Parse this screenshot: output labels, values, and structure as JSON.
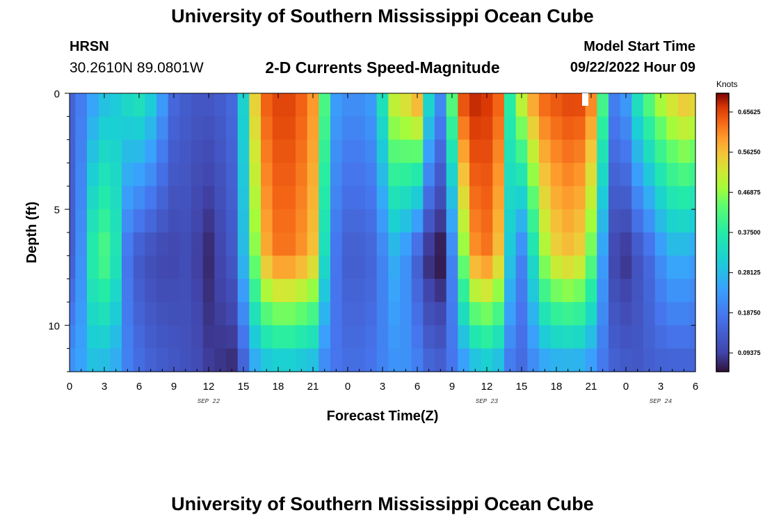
{
  "page": {
    "title": "University of Southern Mississippi Ocean Cube",
    "station": "HRSN",
    "coordinates": "30.2610N  89.0801W",
    "subtitle": "2-D Currents Speed-Magnitude",
    "model_start_label": "Model Start Time",
    "model_start_value": "09/22/2022 Hour 09",
    "repeated_title": "University of Southern Mississippi Ocean Cube"
  },
  "chart_data": {
    "type": "heatmap",
    "xlabel": "Forecast Time(Z)",
    "ylabel": "Depth (ft)",
    "x_tick_labels": [
      "0",
      "3",
      "6",
      "9",
      "12",
      "15",
      "18",
      "21",
      "0",
      "3",
      "6",
      "9",
      "12",
      "15",
      "18",
      "21",
      "0",
      "3",
      "6"
    ],
    "date_labels": [
      {
        "text": "SEP 22",
        "at_hour": 12
      },
      {
        "text": "SEP 23",
        "at_hour": 36
      },
      {
        "text": "SEP 24",
        "at_hour": 51
      }
    ],
    "x_range_hours": [
      0,
      54
    ],
    "y_tick_labels": [
      "0",
      "5",
      "10"
    ],
    "y_range_ft": [
      0,
      12
    ],
    "colorbar": {
      "units": "Knots",
      "range": [
        0.05,
        0.7
      ],
      "tick_labels": [
        "0.09375",
        "0.18750",
        "0.28125",
        "0.37500",
        "0.46875",
        "0.56250",
        "0.65625"
      ]
    },
    "depth_levels_ft": [
      0.5,
      1.5,
      2.5,
      3.5,
      4.5,
      5.5,
      6.5,
      7.5,
      8.5,
      9.5,
      10.5,
      11.5
    ],
    "time_anchor_hours": [
      0,
      1,
      2,
      3,
      4,
      5,
      6,
      7,
      8,
      9,
      10,
      11,
      12,
      13,
      14,
      15,
      16,
      17,
      18,
      19,
      20,
      21,
      22,
      23,
      24,
      25,
      26,
      27,
      28,
      29,
      30,
      31,
      32,
      33,
      34,
      35,
      36,
      37,
      38,
      39,
      40,
      41,
      42,
      43,
      44,
      45,
      46,
      47,
      48,
      49,
      50,
      51,
      52,
      53,
      54
    ],
    "speed_at_surface": [
      0.15,
      0.19,
      0.24,
      0.28,
      0.3,
      0.34,
      0.36,
      0.32,
      0.24,
      0.16,
      0.14,
      0.13,
      0.13,
      0.14,
      0.16,
      0.32,
      0.55,
      0.64,
      0.66,
      0.66,
      0.64,
      0.6,
      0.42,
      0.24,
      0.22,
      0.22,
      0.24,
      0.36,
      0.52,
      0.55,
      0.6,
      0.34,
      0.22,
      0.44,
      0.66,
      0.68,
      0.67,
      0.64,
      0.38,
      0.52,
      0.6,
      0.64,
      0.65,
      0.66,
      0.66,
      0.62,
      0.42,
      0.2,
      0.24,
      0.36,
      0.44,
      0.5,
      0.54,
      0.57,
      0.56
    ],
    "speed_at_mid_depth": [
      0.14,
      0.22,
      0.38,
      0.42,
      0.36,
      0.18,
      0.13,
      0.11,
      0.1,
      0.1,
      0.11,
      0.09,
      0.07,
      0.1,
      0.13,
      0.28,
      0.46,
      0.58,
      0.62,
      0.62,
      0.6,
      0.56,
      0.34,
      0.18,
      0.14,
      0.14,
      0.15,
      0.2,
      0.26,
      0.22,
      0.14,
      0.07,
      0.05,
      0.2,
      0.46,
      0.6,
      0.62,
      0.56,
      0.3,
      0.2,
      0.34,
      0.48,
      0.54,
      0.56,
      0.54,
      0.44,
      0.24,
      0.1,
      0.08,
      0.12,
      0.16,
      0.22,
      0.26,
      0.26,
      0.24
    ],
    "speed_at_bottom": [
      0.23,
      0.25,
      0.28,
      0.27,
      0.25,
      0.2,
      0.17,
      0.15,
      0.14,
      0.13,
      0.12,
      0.11,
      0.09,
      0.08,
      0.07,
      0.14,
      0.24,
      0.27,
      0.28,
      0.28,
      0.27,
      0.26,
      0.2,
      0.18,
      0.17,
      0.17,
      0.18,
      0.2,
      0.22,
      0.22,
      0.2,
      0.16,
      0.15,
      0.18,
      0.22,
      0.26,
      0.28,
      0.26,
      0.18,
      0.16,
      0.2,
      0.23,
      0.24,
      0.24,
      0.24,
      0.22,
      0.18,
      0.15,
      0.14,
      0.13,
      0.14,
      0.14,
      0.14,
      0.14,
      0.14
    ],
    "mid_depth_ft": 7
  }
}
